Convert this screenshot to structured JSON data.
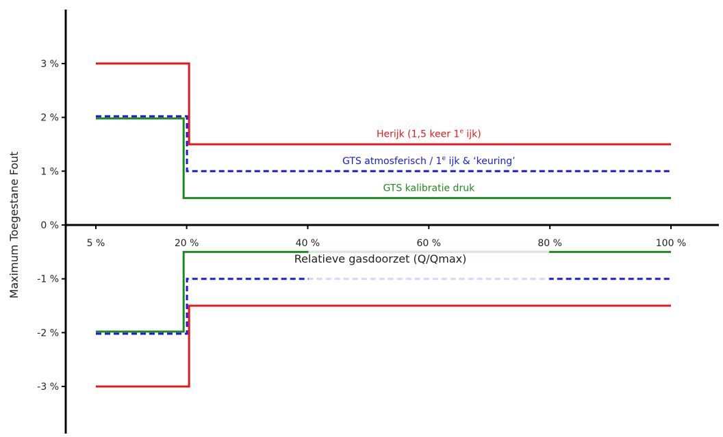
{
  "chart_data": {
    "type": "line",
    "xlabel": "Relatieve gasdoorzet (Q/Qmax)",
    "ylabel": "Maximum Toegestane Fout",
    "x_ticks": [
      {
        "value": 5,
        "label": "5 %"
      },
      {
        "value": 20,
        "label": "20 %"
      },
      {
        "value": 40,
        "label": "40 %"
      },
      {
        "value": 60,
        "label": "60 %"
      },
      {
        "value": 80,
        "label": "80 %"
      },
      {
        "value": 100,
        "label": "100 %"
      }
    ],
    "y_ticks": [
      {
        "value": 3,
        "label": "3 %"
      },
      {
        "value": 2,
        "label": "2 %"
      },
      {
        "value": 1,
        "label": "1 %"
      },
      {
        "value": 0,
        "label": "0 %"
      },
      {
        "value": -1,
        "label": "-1 %"
      },
      {
        "value": -2,
        "label": "-2 %"
      },
      {
        "value": -3,
        "label": "-3 %"
      }
    ],
    "xlim": [
      0,
      104
    ],
    "ylim": [
      -3.9,
      3.9
    ],
    "grid": false,
    "series": [
      {
        "id": "herijk",
        "label_parts": [
          "Herijk (1,5 keer 1",
          "e",
          " ijk)"
        ],
        "color": "#e31a1c",
        "dash": false,
        "break_x": 20.4,
        "low_value": 3,
        "high_value": 1.5,
        "label_x": 60,
        "label_y": 1.63
      },
      {
        "id": "gts-atmosferisch",
        "label_parts": [
          "GTS atmosferisch / 1",
          "e",
          " ijk & ‘keuring’"
        ],
        "color": "#1a1adb",
        "dash": true,
        "break_x": 20.05,
        "low_value": 2.02,
        "high_value": 1.0,
        "label_x": 60,
        "label_y": 1.13
      },
      {
        "id": "gts-kalibratie",
        "label_parts": [
          "GTS kalibratie druk",
          "",
          ""
        ],
        "color": "#1e8a1e",
        "dash": false,
        "break_x": 19.5,
        "low_value": 1.98,
        "high_value": 0.5,
        "label_x": 60,
        "label_y": 0.63
      }
    ]
  }
}
